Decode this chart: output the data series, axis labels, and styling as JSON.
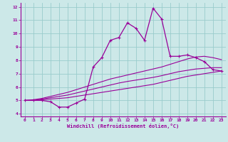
{
  "xlabel": "Windchill (Refroidissement éolien,°C)",
  "bg_color": "#cce8e8",
  "line_color": "#990099",
  "grid_color": "#99cccc",
  "xlim": [
    -0.5,
    23.5
  ],
  "ylim": [
    3.8,
    12.3
  ],
  "xticks": [
    0,
    1,
    2,
    3,
    4,
    5,
    6,
    7,
    8,
    9,
    10,
    11,
    12,
    13,
    14,
    15,
    16,
    17,
    18,
    19,
    20,
    21,
    22,
    23
  ],
  "yticks": [
    4,
    5,
    6,
    7,
    8,
    9,
    10,
    11,
    12
  ],
  "hours": [
    0,
    1,
    2,
    3,
    4,
    5,
    6,
    7,
    8,
    9,
    10,
    11,
    12,
    13,
    14,
    15,
    16,
    17,
    18,
    19,
    20,
    21,
    22,
    23
  ],
  "main_series": [
    5.0,
    5.0,
    5.0,
    4.9,
    4.5,
    4.5,
    4.8,
    5.1,
    7.5,
    8.2,
    9.5,
    9.7,
    10.8,
    10.4,
    9.5,
    11.9,
    11.1,
    8.3,
    8.3,
    8.4,
    8.2,
    7.9,
    7.3,
    7.2
  ],
  "smooth_line1": [
    5.0,
    5.0,
    5.05,
    5.1,
    5.15,
    5.2,
    5.3,
    5.4,
    5.5,
    5.6,
    5.7,
    5.8,
    5.9,
    6.0,
    6.1,
    6.2,
    6.35,
    6.5,
    6.65,
    6.8,
    6.9,
    7.0,
    7.1,
    7.2
  ],
  "smooth_line2": [
    5.0,
    5.0,
    5.1,
    5.2,
    5.3,
    5.4,
    5.55,
    5.7,
    5.85,
    6.0,
    6.15,
    6.3,
    6.42,
    6.52,
    6.62,
    6.72,
    6.85,
    7.0,
    7.15,
    7.25,
    7.35,
    7.4,
    7.45,
    7.45
  ],
  "smooth_line3": [
    5.0,
    5.05,
    5.15,
    5.3,
    5.45,
    5.6,
    5.8,
    6.0,
    6.2,
    6.4,
    6.6,
    6.75,
    6.9,
    7.05,
    7.2,
    7.35,
    7.5,
    7.7,
    7.9,
    8.1,
    8.25,
    8.3,
    8.2,
    8.05
  ]
}
